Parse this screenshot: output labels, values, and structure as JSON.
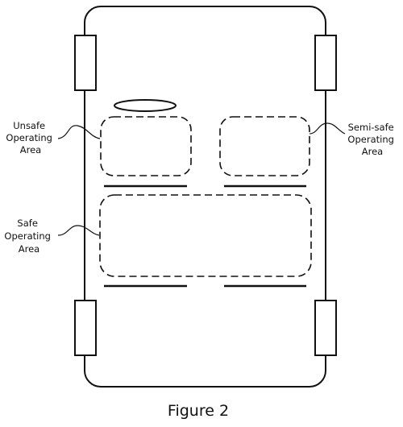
{
  "diagram": {
    "areas": {
      "unsafe": {
        "label_lines": [
          "Unsafe",
          "Operating",
          "Area"
        ]
      },
      "semi_safe": {
        "label_lines": [
          "Semi-safe",
          "Operating",
          "Area"
        ]
      },
      "safe": {
        "label_lines": [
          "Safe",
          "Operating",
          "Area"
        ]
      }
    },
    "caption": "Figure 2",
    "colors": {
      "stroke": "#111111",
      "background": "#ffffff"
    }
  }
}
